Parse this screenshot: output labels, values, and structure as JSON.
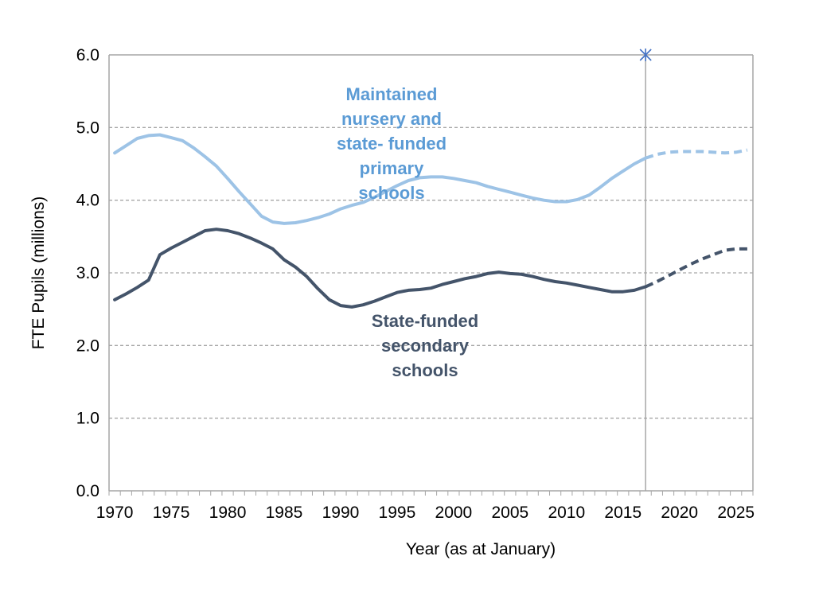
{
  "chart_data": {
    "type": "line",
    "title": "",
    "xlabel": "Year (as at January)",
    "ylabel": "FTE Pupils (millions)",
    "xlim": [
      1969.5,
      2026.5
    ],
    "ylim": [
      0,
      6
    ],
    "x_ticks": [
      "1970",
      "1975",
      "1980",
      "1985",
      "1990",
      "1995",
      "2000",
      "2005",
      "2010",
      "2015",
      "2020",
      "2025"
    ],
    "y_ticks": [
      "0.0",
      "1.0",
      "2.0",
      "3.0",
      "4.0",
      "5.0",
      "6.0"
    ],
    "grid": "horizontal dashed",
    "projection_marker": {
      "year": 2017,
      "y": 6.0,
      "symbol": "star",
      "color": "#4472C4"
    },
    "series": [
      {
        "name": "Maintained nursery and state- funded primary schools",
        "label_lines": [
          "Maintained",
          "nursery and",
          "state- funded",
          "primary",
          "schools"
        ],
        "color": "#9DC3E6",
        "label_color": "#5B9BD5",
        "actual": [
          [
            1970,
            4.65
          ],
          [
            1971,
            4.75
          ],
          [
            1972,
            4.85
          ],
          [
            1973,
            4.89
          ],
          [
            1974,
            4.9
          ],
          [
            1975,
            4.86
          ],
          [
            1976,
            4.82
          ],
          [
            1977,
            4.72
          ],
          [
            1978,
            4.6
          ],
          [
            1979,
            4.47
          ],
          [
            1980,
            4.3
          ],
          [
            1981,
            4.12
          ],
          [
            1982,
            3.95
          ],
          [
            1983,
            3.78
          ],
          [
            1984,
            3.7
          ],
          [
            1985,
            3.68
          ],
          [
            1986,
            3.69
          ],
          [
            1987,
            3.72
          ],
          [
            1988,
            3.76
          ],
          [
            1989,
            3.81
          ],
          [
            1990,
            3.88
          ],
          [
            1991,
            3.93
          ],
          [
            1992,
            3.97
          ],
          [
            1993,
            4.04
          ],
          [
            1994,
            4.12
          ],
          [
            1995,
            4.2
          ],
          [
            1996,
            4.27
          ],
          [
            1997,
            4.31
          ],
          [
            1998,
            4.32
          ],
          [
            1999,
            4.32
          ],
          [
            2000,
            4.3
          ],
          [
            2001,
            4.27
          ],
          [
            2002,
            4.24
          ],
          [
            2003,
            4.19
          ],
          [
            2004,
            4.15
          ],
          [
            2005,
            4.11
          ],
          [
            2006,
            4.07
          ],
          [
            2007,
            4.03
          ],
          [
            2008,
            4.0
          ],
          [
            2009,
            3.98
          ],
          [
            2010,
            3.98
          ],
          [
            2011,
            4.01
          ],
          [
            2012,
            4.07
          ],
          [
            2013,
            4.18
          ],
          [
            2014,
            4.3
          ],
          [
            2015,
            4.4
          ],
          [
            2016,
            4.5
          ],
          [
            2017,
            4.58
          ]
        ],
        "projected": [
          [
            2017,
            4.58
          ],
          [
            2018,
            4.63
          ],
          [
            2019,
            4.66
          ],
          [
            2020,
            4.67
          ],
          [
            2021,
            4.67
          ],
          [
            2022,
            4.67
          ],
          [
            2023,
            4.66
          ],
          [
            2024,
            4.65
          ],
          [
            2025,
            4.66
          ],
          [
            2026,
            4.69
          ]
        ]
      },
      {
        "name": "State-funded secondary schools",
        "label_lines": [
          "State-funded",
          "secondary",
          "schools"
        ],
        "color": "#44546A",
        "label_color": "#44546A",
        "actual": [
          [
            1970,
            2.63
          ],
          [
            1971,
            2.71
          ],
          [
            1972,
            2.8
          ],
          [
            1973,
            2.9
          ],
          [
            1974,
            3.25
          ],
          [
            1975,
            3.34
          ],
          [
            1976,
            3.42
          ],
          [
            1977,
            3.5
          ],
          [
            1978,
            3.58
          ],
          [
            1979,
            3.6
          ],
          [
            1980,
            3.58
          ],
          [
            1981,
            3.54
          ],
          [
            1982,
            3.48
          ],
          [
            1983,
            3.41
          ],
          [
            1984,
            3.33
          ],
          [
            1985,
            3.18
          ],
          [
            1986,
            3.08
          ],
          [
            1987,
            2.95
          ],
          [
            1988,
            2.78
          ],
          [
            1989,
            2.63
          ],
          [
            1990,
            2.55
          ],
          [
            1991,
            2.53
          ],
          [
            1992,
            2.56
          ],
          [
            1993,
            2.61
          ],
          [
            1994,
            2.67
          ],
          [
            1995,
            2.73
          ],
          [
            1996,
            2.76
          ],
          [
            1997,
            2.77
          ],
          [
            1998,
            2.79
          ],
          [
            1999,
            2.84
          ],
          [
            2000,
            2.88
          ],
          [
            2001,
            2.92
          ],
          [
            2002,
            2.95
          ],
          [
            2003,
            2.99
          ],
          [
            2004,
            3.01
          ],
          [
            2005,
            2.99
          ],
          [
            2006,
            2.98
          ],
          [
            2007,
            2.95
          ],
          [
            2008,
            2.91
          ],
          [
            2009,
            2.88
          ],
          [
            2010,
            2.86
          ],
          [
            2011,
            2.83
          ],
          [
            2012,
            2.8
          ],
          [
            2013,
            2.77
          ],
          [
            2014,
            2.74
          ],
          [
            2015,
            2.74
          ],
          [
            2016,
            2.76
          ],
          [
            2017,
            2.81
          ]
        ],
        "projected": [
          [
            2017,
            2.81
          ],
          [
            2018,
            2.88
          ],
          [
            2019,
            2.96
          ],
          [
            2020,
            3.04
          ],
          [
            2021,
            3.12
          ],
          [
            2022,
            3.19
          ],
          [
            2023,
            3.25
          ],
          [
            2024,
            3.31
          ],
          [
            2025,
            3.33
          ],
          [
            2026,
            3.33
          ]
        ]
      }
    ]
  }
}
